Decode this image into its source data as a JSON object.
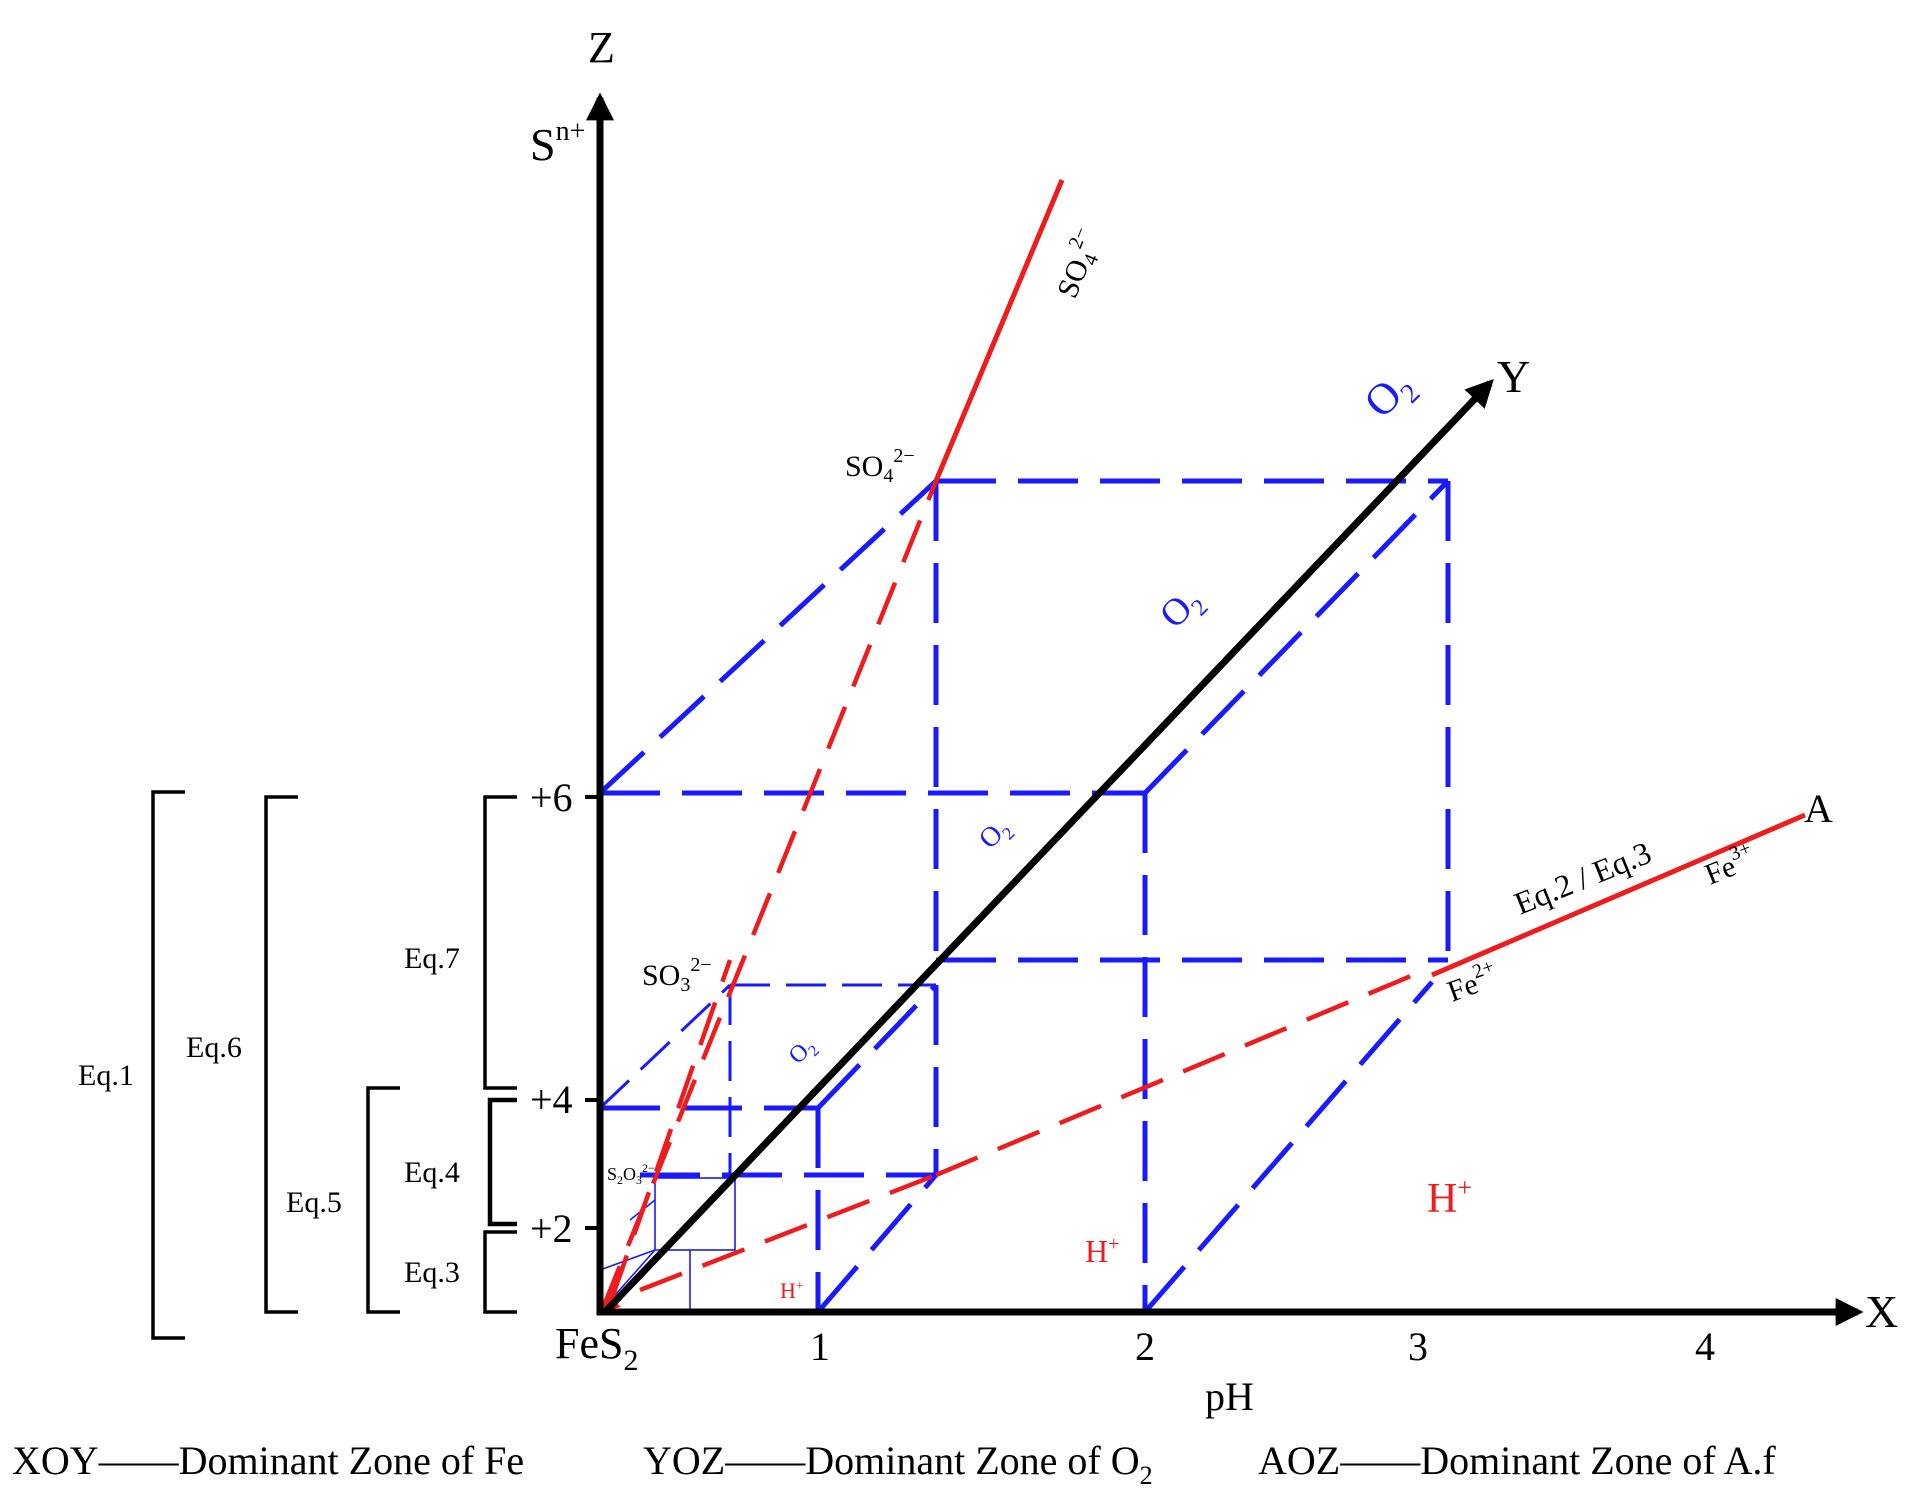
{
  "axes": {
    "z_label": "Z",
    "y_label": "Y",
    "x_label": "X",
    "z_title": "S",
    "z_title_sup": "n+",
    "origin_label": "FeS",
    "origin_label_sub": "2",
    "x_title": "pH",
    "x_ticks": [
      "1",
      "2",
      "3",
      "4"
    ],
    "z_ticks": [
      "+2",
      "+4",
      "+6"
    ],
    "point_a": "A"
  },
  "brackets": {
    "eq1": "Eq.1",
    "eq6": "Eq.6",
    "eq5": "Eq.5",
    "eq7": "Eq.7",
    "eq4": "Eq.4",
    "eq3": "Eq.3"
  },
  "species": {
    "so4_main": "SO",
    "so4_main_sub": "4",
    "so4_main_sup": "2−",
    "so4_line": "SO",
    "so4_line_sub": "4",
    "so4_line_sup": "2−",
    "so3": "SO",
    "so3_sub": "3",
    "so3_sup": "2−",
    "s2o3": "S",
    "s2o3_sub1": "2",
    "s2o3_mid": "O",
    "s2o3_sub2": "3",
    "s2o3_sup": "2−",
    "fe2": "Fe",
    "fe2_sup": "2+",
    "fe3": "Fe",
    "fe3_sup": "3+",
    "eq23": "Eq.2 / Eq.3"
  },
  "labels": {
    "o2_axis": "O",
    "o2_axis_sub": "2",
    "o2_big": "O",
    "o2_big_sub": "2",
    "o2_mid": "O",
    "o2_mid_sub": "2",
    "o2_small": "O",
    "o2_small_sub": "2",
    "hplus_big": "H",
    "hplus_big_sup": "+",
    "hplus_mid": "H",
    "hplus_mid_sup": "+",
    "hplus_small": "H",
    "hplus_small_sup": "+"
  },
  "legend": {
    "xoy": "XOY——Dominant Zone of Fe",
    "yoz_prefix": "YOZ——Dominant Zone of O",
    "yoz_sub": "2",
    "aoz": "AOZ——Dominant Zone of A.f"
  },
  "colors": {
    "axis": "#000000",
    "blue": "#1a1aff",
    "red": "#ee1c1c"
  }
}
